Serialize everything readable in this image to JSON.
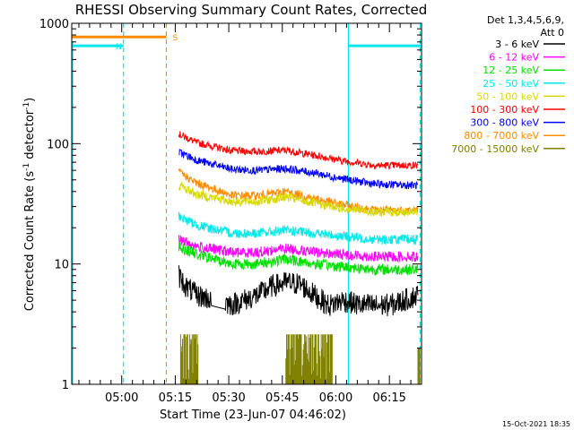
{
  "chart_data": {
    "type": "line",
    "title": "RHESSI Observing Summary Count Rates, Corrected",
    "xlabel": "Start Time (23-Jun-07 04:46:02)",
    "ylabel_main": "Corrected Count Rate (s",
    "ylabel_sup1": "-1",
    "ylabel_mid": " detector",
    "ylabel_sup2": "-1",
    "ylabel_end": ")",
    "y_scale": "log",
    "ylim": [
      1,
      1000
    ],
    "xlim_minutes": [
      0,
      98
    ],
    "x_ticks": [
      {
        "label": "05:00",
        "t": 14
      },
      {
        "label": "05:15",
        "t": 29
      },
      {
        "label": "05:30",
        "t": 44
      },
      {
        "label": "05:45",
        "t": 59
      },
      {
        "label": "06:00",
        "t": 74
      },
      {
        "label": "06:15",
        "t": 89
      }
    ],
    "y_ticks": [
      {
        "label": "1",
        "v": 1
      },
      {
        "label": "10",
        "v": 10
      },
      {
        "label": "100",
        "v": 100
      },
      {
        "label": "1000",
        "v": 1000
      }
    ],
    "legend": {
      "placement": "top-right",
      "header1": "Det 1,3,4,5,6,9,",
      "header2": "Att 0",
      "entries": [
        {
          "label": "3 - 6 keV",
          "color": "#000000"
        },
        {
          "label": "6 - 12 keV",
          "color": "#ff00ff"
        },
        {
          "label": "12 - 25 keV",
          "color": "#00e000"
        },
        {
          "label": "25 - 50 keV",
          "color": "#00e8e8"
        },
        {
          "label": "50 - 100 keV",
          "color": "#d8d800"
        },
        {
          "label": "100 - 300 keV",
          "color": "#ff0000"
        },
        {
          "label": "300 - 800 keV",
          "color": "#0000ff"
        },
        {
          "label": "800 - 7000 keV",
          "color": "#ff8c00"
        },
        {
          "label": "7000 - 15000 keV",
          "color": "#808000"
        }
      ]
    },
    "series": [
      {
        "color": "#ff0000",
        "x": [
          30,
          35,
          45,
          52,
          60,
          68,
          76,
          85,
          97
        ],
        "y": [
          120,
          102,
          87,
          86,
          88,
          80,
          72,
          66,
          66
        ]
      },
      {
        "color": "#0000ff",
        "x": [
          30,
          35,
          45,
          52,
          60,
          68,
          76,
          85,
          97
        ],
        "y": [
          85,
          73,
          61,
          60,
          62,
          57,
          51,
          46,
          45
        ]
      },
      {
        "color": "#ff8c00",
        "x": [
          30,
          35,
          45,
          52,
          60,
          68,
          76,
          85,
          97
        ],
        "y": [
          58,
          47,
          37,
          37,
          40,
          35,
          31,
          28,
          28
        ]
      },
      {
        "color": "#d8d800",
        "x": [
          30,
          35,
          45,
          52,
          60,
          68,
          76,
          85,
          97
        ],
        "y": [
          45,
          38,
          33,
          33,
          36,
          32,
          29,
          27,
          27
        ]
      },
      {
        "color": "#00e8e8",
        "x": [
          30,
          35,
          45,
          52,
          60,
          68,
          76,
          85,
          97
        ],
        "y": [
          25,
          21,
          18,
          18,
          19,
          18,
          17,
          16,
          16
        ]
      },
      {
        "color": "#ff00ff",
        "x": [
          30,
          35,
          45,
          52,
          60,
          68,
          76,
          85,
          97
        ],
        "y": [
          16,
          14,
          12.5,
          12.5,
          13.5,
          12.5,
          12,
          11.5,
          11.5
        ]
      },
      {
        "color": "#00e000",
        "x": [
          30,
          35,
          45,
          52,
          60,
          68,
          76,
          85,
          97
        ],
        "y": [
          14,
          12,
          10,
          10,
          11,
          10,
          9.5,
          9,
          9
        ]
      },
      {
        "color": "#000000",
        "x": [
          30,
          32,
          35,
          40,
          45,
          52,
          56,
          60,
          64,
          68,
          72,
          76,
          80,
          85,
          90,
          97
        ],
        "y": [
          8,
          6.5,
          5.5,
          5,
          4.6,
          5.5,
          6.5,
          7,
          6.8,
          5.5,
          4.5,
          5,
          4.6,
          4.5,
          4.6,
          5.5
        ]
      }
    ],
    "gamma_bursts": [
      {
        "t0": 30.5,
        "t1": 35.5,
        "top": 2.6
      },
      {
        "t0": 60.0,
        "t1": 73.0,
        "top": 2.6
      },
      {
        "t0": 97.0,
        "t1": 97.6,
        "top": 2.0
      }
    ],
    "attenuator_segments": [
      {
        "label": "N",
        "color": "#00e8e8",
        "t0": 0,
        "t1": 14.5,
        "level": 650
      },
      {
        "label": "N",
        "color": "#00e8e8",
        "t0": 77.5,
        "t1": 97.8,
        "level": 650
      },
      {
        "label": "S",
        "color": "#ff8c00",
        "t0": 0,
        "t1": 26.5,
        "level": 770
      }
    ],
    "night_lines": [
      {
        "color": "#00e8e8",
        "t": 14.5,
        "style": "dashed"
      },
      {
        "color": "#00e8e8",
        "t": 77.5,
        "style": "solid"
      },
      {
        "color": "#00e8e8",
        "t": 97.6,
        "style": "dashed"
      }
    ],
    "saa_line": {
      "color": "#ff8c00",
      "t": 26.5,
      "label": "S",
      "style": "dashed"
    },
    "night_label": "N"
  },
  "timestamp": "15-Oct-2021 18:35"
}
